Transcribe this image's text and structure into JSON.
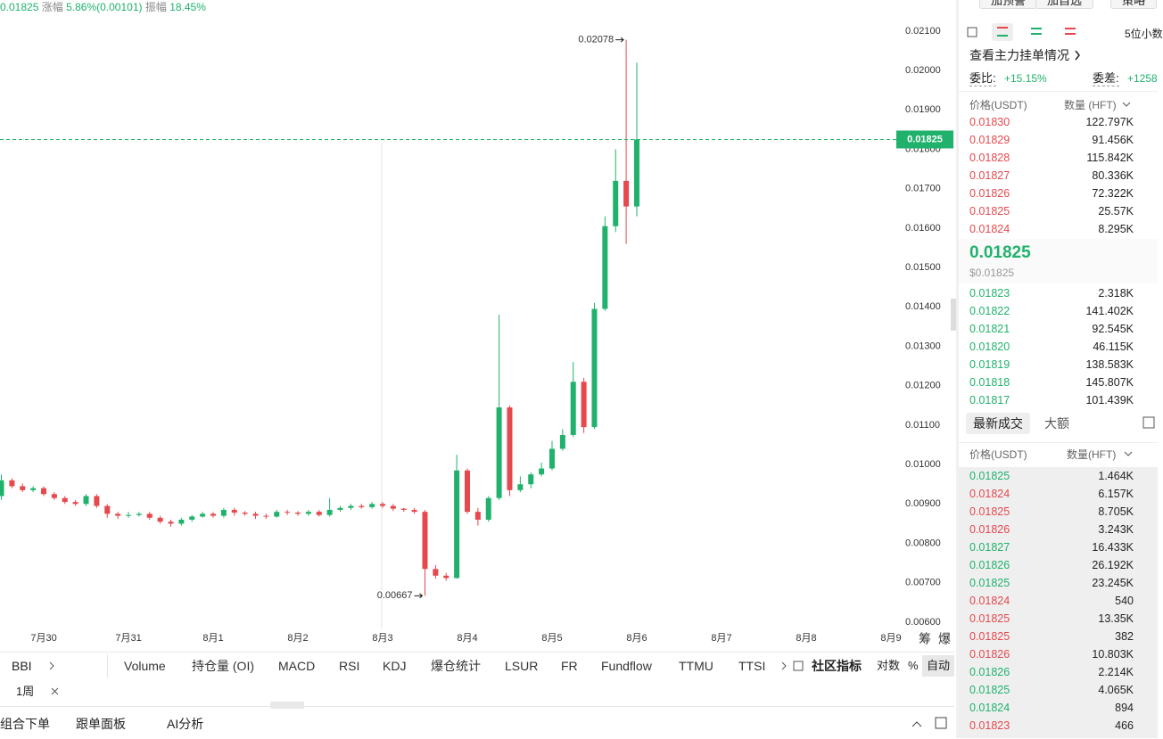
{
  "header": {
    "price": "0.01825",
    "change_label": "涨幅",
    "change": "5.86%(0.00101)",
    "amplitude_label": "振幅",
    "amplitude": "18.45%"
  },
  "chart_data": {
    "type": "candlestick",
    "up_color": "#20b26c",
    "down_color": "#e5484d",
    "x": [
      -0.5,
      -0.375,
      -0.25,
      -0.125,
      0,
      0.125,
      0.25,
      0.375,
      0.5,
      0.625,
      0.75,
      0.875,
      1,
      1.125,
      1.25,
      1.375,
      1.5,
      1.625,
      1.75,
      1.875,
      2,
      2.125,
      2.25,
      2.375,
      2.5,
      2.625,
      2.75,
      2.875,
      3,
      3.125,
      3.25,
      3.375,
      3.5,
      3.625,
      3.75,
      3.875,
      4,
      4.125,
      4.25,
      4.375,
      4.5,
      4.625,
      4.75,
      4.875,
      5,
      5.125,
      5.25,
      5.375,
      5.5,
      5.625,
      5.75,
      5.875,
      6,
      6.125,
      6.25,
      6.375,
      6.5,
      6.625,
      6.75,
      6.875,
      7
    ],
    "open": [
      0.0092,
      0.0096,
      0.00945,
      0.00935,
      0.0094,
      0.00925,
      0.00915,
      0.00905,
      0.009,
      0.0092,
      0.00895,
      0.00875,
      0.0087,
      0.00872,
      0.00875,
      0.00865,
      0.00855,
      0.0085,
      0.0086,
      0.00868,
      0.00875,
      0.0087,
      0.00885,
      0.00878,
      0.00875,
      0.0087,
      0.00868,
      0.0088,
      0.00878,
      0.00875,
      0.0088,
      0.00872,
      0.00885,
      0.0089,
      0.00895,
      0.00892,
      0.009,
      0.00895,
      0.00888,
      0.00885,
      0.0088,
      0.00735,
      0.00718,
      0.00712,
      0.00985,
      0.0088,
      0.0086,
      0.00915,
      0.01145,
      0.00935,
      0.0095,
      0.00975,
      0.0099,
      0.0104,
      0.01075,
      0.0121,
      0.01095,
      0.01395,
      0.01605,
      0.0172,
      0.01655
    ],
    "high": [
      0.00975,
      0.00965,
      0.00952,
      0.00945,
      0.00945,
      0.0093,
      0.0092,
      0.0091,
      0.00925,
      0.00925,
      0.009,
      0.0088,
      0.0088,
      0.0088,
      0.0088,
      0.0087,
      0.0086,
      0.00865,
      0.00872,
      0.0088,
      0.0088,
      0.0089,
      0.0089,
      0.00882,
      0.0088,
      0.00875,
      0.00885,
      0.00885,
      0.00882,
      0.00885,
      0.00885,
      0.00915,
      0.00895,
      0.009,
      0.009,
      0.00905,
      0.00905,
      0.009,
      0.0089,
      0.0089,
      0.00885,
      0.00745,
      0.00725,
      0.01025,
      0.0099,
      0.0089,
      0.0092,
      0.0138,
      0.0115,
      0.0097,
      0.0098,
      0.01005,
      0.0106,
      0.0109,
      0.0126,
      0.0122,
      0.0141,
      0.0163,
      0.018,
      0.02078,
      0.0202
    ],
    "low": [
      0.0091,
      0.0094,
      0.0093,
      0.0093,
      0.0092,
      0.0091,
      0.009,
      0.00895,
      0.00895,
      0.0089,
      0.00865,
      0.00862,
      0.00865,
      0.00868,
      0.0086,
      0.0085,
      0.00842,
      0.00845,
      0.00855,
      0.00865,
      0.00865,
      0.00865,
      0.0087,
      0.0087,
      0.00862,
      0.00862,
      0.00865,
      0.00872,
      0.0087,
      0.0087,
      0.00868,
      0.00868,
      0.0088,
      0.00885,
      0.00888,
      0.00888,
      0.0089,
      0.00882,
      0.0088,
      0.00875,
      0.00667,
      0.0071,
      0.00705,
      0.0071,
      0.00875,
      0.00845,
      0.00855,
      0.0091,
      0.0092,
      0.0093,
      0.0094,
      0.0097,
      0.00985,
      0.01035,
      0.0107,
      0.0108,
      0.0109,
      0.0139,
      0.0159,
      0.0156,
      0.0163
    ],
    "close": [
      0.0096,
      0.00945,
      0.00935,
      0.0094,
      0.00925,
      0.00915,
      0.00905,
      0.009,
      0.0092,
      0.00895,
      0.00875,
      0.0087,
      0.00872,
      0.00875,
      0.00865,
      0.00855,
      0.0085,
      0.0086,
      0.00868,
      0.00875,
      0.0087,
      0.00885,
      0.00878,
      0.00875,
      0.0087,
      0.00868,
      0.0088,
      0.00878,
      0.00875,
      0.0088,
      0.00872,
      0.00885,
      0.0089,
      0.00895,
      0.00892,
      0.009,
      0.00895,
      0.00888,
      0.00885,
      0.0088,
      0.00735,
      0.00718,
      0.00712,
      0.00985,
      0.0088,
      0.0086,
      0.00915,
      0.01145,
      0.00935,
      0.0095,
      0.00975,
      0.0099,
      0.0104,
      0.01075,
      0.0121,
      0.01095,
      0.01395,
      0.01605,
      0.0172,
      0.01655,
      0.01825
    ],
    "xlim": [
      -0.516,
      10.011
    ],
    "xticks": [
      {
        "value": 0,
        "label": "7月30"
      },
      {
        "value": 1,
        "label": "7月31"
      },
      {
        "value": 2,
        "label": "8月1"
      },
      {
        "value": 3,
        "label": "8月2"
      },
      {
        "value": 4,
        "label": "8月3"
      },
      {
        "value": 5,
        "label": "8月4"
      },
      {
        "value": 6,
        "label": "8月5"
      },
      {
        "value": 7,
        "label": "8月6"
      },
      {
        "value": 8,
        "label": "8月7"
      },
      {
        "value": 9,
        "label": "8月8"
      },
      {
        "value": 10,
        "label": "8月9"
      }
    ],
    "ylim": [
      0.00584,
      0.02179
    ],
    "yticks": [
      {
        "value": 0.006,
        "label": "0.00600"
      },
      {
        "value": 0.007,
        "label": "0.00700"
      },
      {
        "value": 0.008,
        "label": "0.00800"
      },
      {
        "value": 0.009,
        "label": "0.00900"
      },
      {
        "value": 0.01,
        "label": "0.01000"
      },
      {
        "value": 0.011,
        "label": "0.01100"
      },
      {
        "value": 0.012,
        "label": "0.01200"
      },
      {
        "value": 0.013,
        "label": "0.01300"
      },
      {
        "value": 0.014,
        "label": "0.01400"
      },
      {
        "value": 0.015,
        "label": "0.01500"
      },
      {
        "value": 0.016,
        "label": "0.01600"
      },
      {
        "value": 0.017,
        "label": "0.01700"
      },
      {
        "value": 0.018,
        "label": "0.01800"
      },
      {
        "value": 0.019,
        "label": "0.01900"
      },
      {
        "value": 0.02,
        "label": "0.02000"
      },
      {
        "value": 0.021,
        "label": "0.02100"
      }
    ],
    "last_price": 0.01825,
    "max_price": 0.02078,
    "min_price": 0.00667
  },
  "chart_tools": [
    "筹",
    "爆"
  ],
  "indicators": {
    "left": "BBI",
    "tabs": [
      "Volume",
      "持仓量 (OI)",
      "MACD",
      "RSI",
      "KDJ",
      "爆仓统计",
      "LSUR",
      "FR",
      "Fundflow",
      "TTMU",
      "TTSI"
    ],
    "community": "社区指标",
    "log": "对数",
    "percent": "%",
    "auto": "自动"
  },
  "period": "1周",
  "bottom_bar": [
    "组合下单",
    "跟单面板",
    "AI分析"
  ],
  "top_buttons": [
    "加预警",
    "加自选",
    "策略"
  ],
  "order_book": {
    "decimals": "5位小数",
    "link": "查看主力挂单情况",
    "ratio_label": "委比:",
    "ratio": "+15.15%",
    "diff_label": "委差:",
    "diff": "+1258",
    "price_header": "价格(USDT)",
    "qty_header": "数量 (HFT)",
    "ask_color": "#e5484d",
    "bid_color": "#20b26c",
    "asks": [
      [
        "0.01830",
        "122.797K"
      ],
      [
        "0.01829",
        "91.456K"
      ],
      [
        "0.01828",
        "115.842K"
      ],
      [
        "0.01827",
        "80.336K"
      ],
      [
        "0.01826",
        "72.322K"
      ],
      [
        "0.01825",
        "25.57K"
      ],
      [
        "0.01824",
        "8.295K"
      ]
    ],
    "last_price": "0.01825",
    "last_price_usd": "$0.01825",
    "bids": [
      [
        "0.01823",
        "2.318K"
      ],
      [
        "0.01822",
        "141.402K"
      ],
      [
        "0.01821",
        "92.545K"
      ],
      [
        "0.01820",
        "46.115K"
      ],
      [
        "0.01819",
        "138.583K"
      ],
      [
        "0.01818",
        "145.807K"
      ],
      [
        "0.01817",
        "101.439K"
      ]
    ]
  },
  "trades": {
    "tabs": [
      "最新成交",
      "大额"
    ],
    "price_header": "价格(USDT)",
    "qty_header": "数量(HFT)",
    "rows": [
      {
        "price": "0.01825",
        "qty": "1.464K",
        "color": "#20b26c"
      },
      {
        "price": "0.01824",
        "qty": "6.157K",
        "color": "#e5484d"
      },
      {
        "price": "0.01825",
        "qty": "8.705K",
        "color": "#e5484d"
      },
      {
        "price": "0.01826",
        "qty": "3.243K",
        "color": "#e5484d"
      },
      {
        "price": "0.01827",
        "qty": "16.433K",
        "color": "#20b26c"
      },
      {
        "price": "0.01826",
        "qty": "26.192K",
        "color": "#20b26c"
      },
      {
        "price": "0.01825",
        "qty": "23.245K",
        "color": "#20b26c"
      },
      {
        "price": "0.01824",
        "qty": "540",
        "color": "#e5484d"
      },
      {
        "price": "0.01825",
        "qty": "13.35K",
        "color": "#e5484d"
      },
      {
        "price": "0.01825",
        "qty": "382",
        "color": "#e5484d"
      },
      {
        "price": "0.01826",
        "qty": "10.803K",
        "color": "#e5484d"
      },
      {
        "price": "0.01826",
        "qty": "2.214K",
        "color": "#20b26c"
      },
      {
        "price": "0.01825",
        "qty": "4.065K",
        "color": "#20b26c"
      },
      {
        "price": "0.01824",
        "qty": "894",
        "color": "#20b26c"
      },
      {
        "price": "0.01823",
        "qty": "466",
        "color": "#e5484d"
      }
    ]
  }
}
